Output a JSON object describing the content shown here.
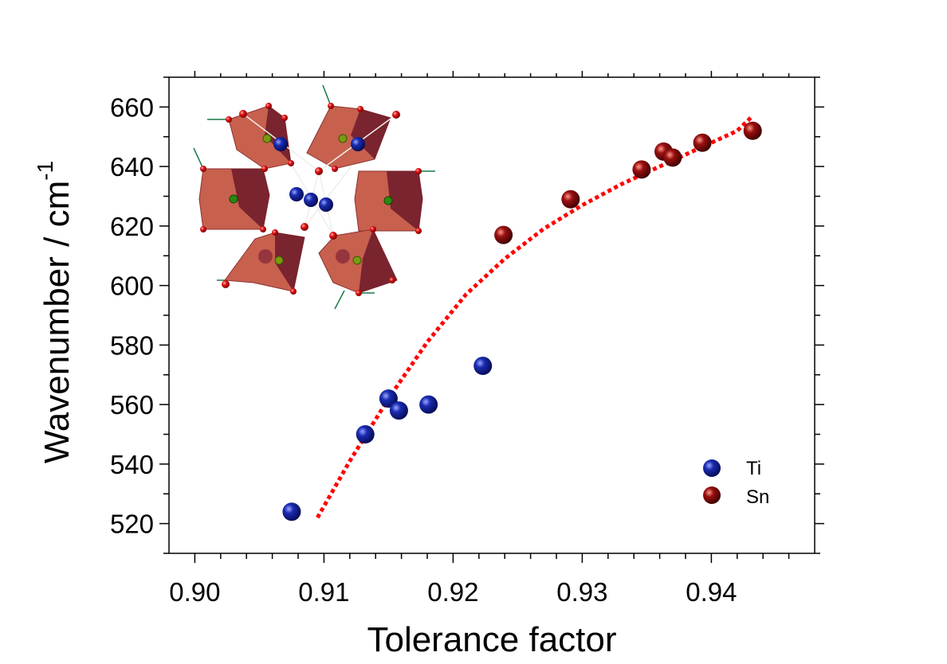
{
  "chart_data": {
    "type": "scatter",
    "xlabel": "Tolerance factor",
    "ylabel": "Wavenumber / cm",
    "ylabel_superscript": "-1",
    "xlim": [
      0.898,
      0.948
    ],
    "ylim": [
      510,
      670
    ],
    "x_ticks": [
      "0.90",
      "0.91",
      "0.92",
      "0.93",
      "0.94"
    ],
    "y_ticks": [
      "520",
      "540",
      "560",
      "580",
      "600",
      "620",
      "640",
      "660"
    ],
    "legend_position": "bottom-right",
    "series": [
      {
        "name": "Ti",
        "color": "#0a1a8c",
        "points": [
          {
            "x": 0.9075,
            "y": 524
          },
          {
            "x": 0.9132,
            "y": 550
          },
          {
            "x": 0.915,
            "y": 562
          },
          {
            "x": 0.9158,
            "y": 558
          },
          {
            "x": 0.9181,
            "y": 560
          },
          {
            "x": 0.9223,
            "y": 573
          }
        ]
      },
      {
        "name": "Sn",
        "color": "#7a0a0a",
        "points": [
          {
            "x": 0.9239,
            "y": 617
          },
          {
            "x": 0.9291,
            "y": 629
          },
          {
            "x": 0.9346,
            "y": 639
          },
          {
            "x": 0.9363,
            "y": 645
          },
          {
            "x": 0.937,
            "y": 643
          },
          {
            "x": 0.9393,
            "y": 648
          },
          {
            "x": 0.9432,
            "y": 652
          }
        ]
      }
    ],
    "fit_curve": {
      "style": "dotted",
      "color": "#ff0000",
      "points": [
        {
          "x": 0.9095,
          "y": 522
        },
        {
          "x": 0.912,
          "y": 541
        },
        {
          "x": 0.915,
          "y": 562
        },
        {
          "x": 0.918,
          "y": 581
        },
        {
          "x": 0.921,
          "y": 597
        },
        {
          "x": 0.924,
          "y": 609
        },
        {
          "x": 0.927,
          "y": 619
        },
        {
          "x": 0.93,
          "y": 627
        },
        {
          "x": 0.933,
          "y": 634
        },
        {
          "x": 0.936,
          "y": 640
        },
        {
          "x": 0.939,
          "y": 646
        },
        {
          "x": 0.942,
          "y": 652
        },
        {
          "x": 0.9432,
          "y": 657
        }
      ]
    },
    "inset": {
      "description_icon": "crystal-structure-octahedra-icon"
    }
  }
}
